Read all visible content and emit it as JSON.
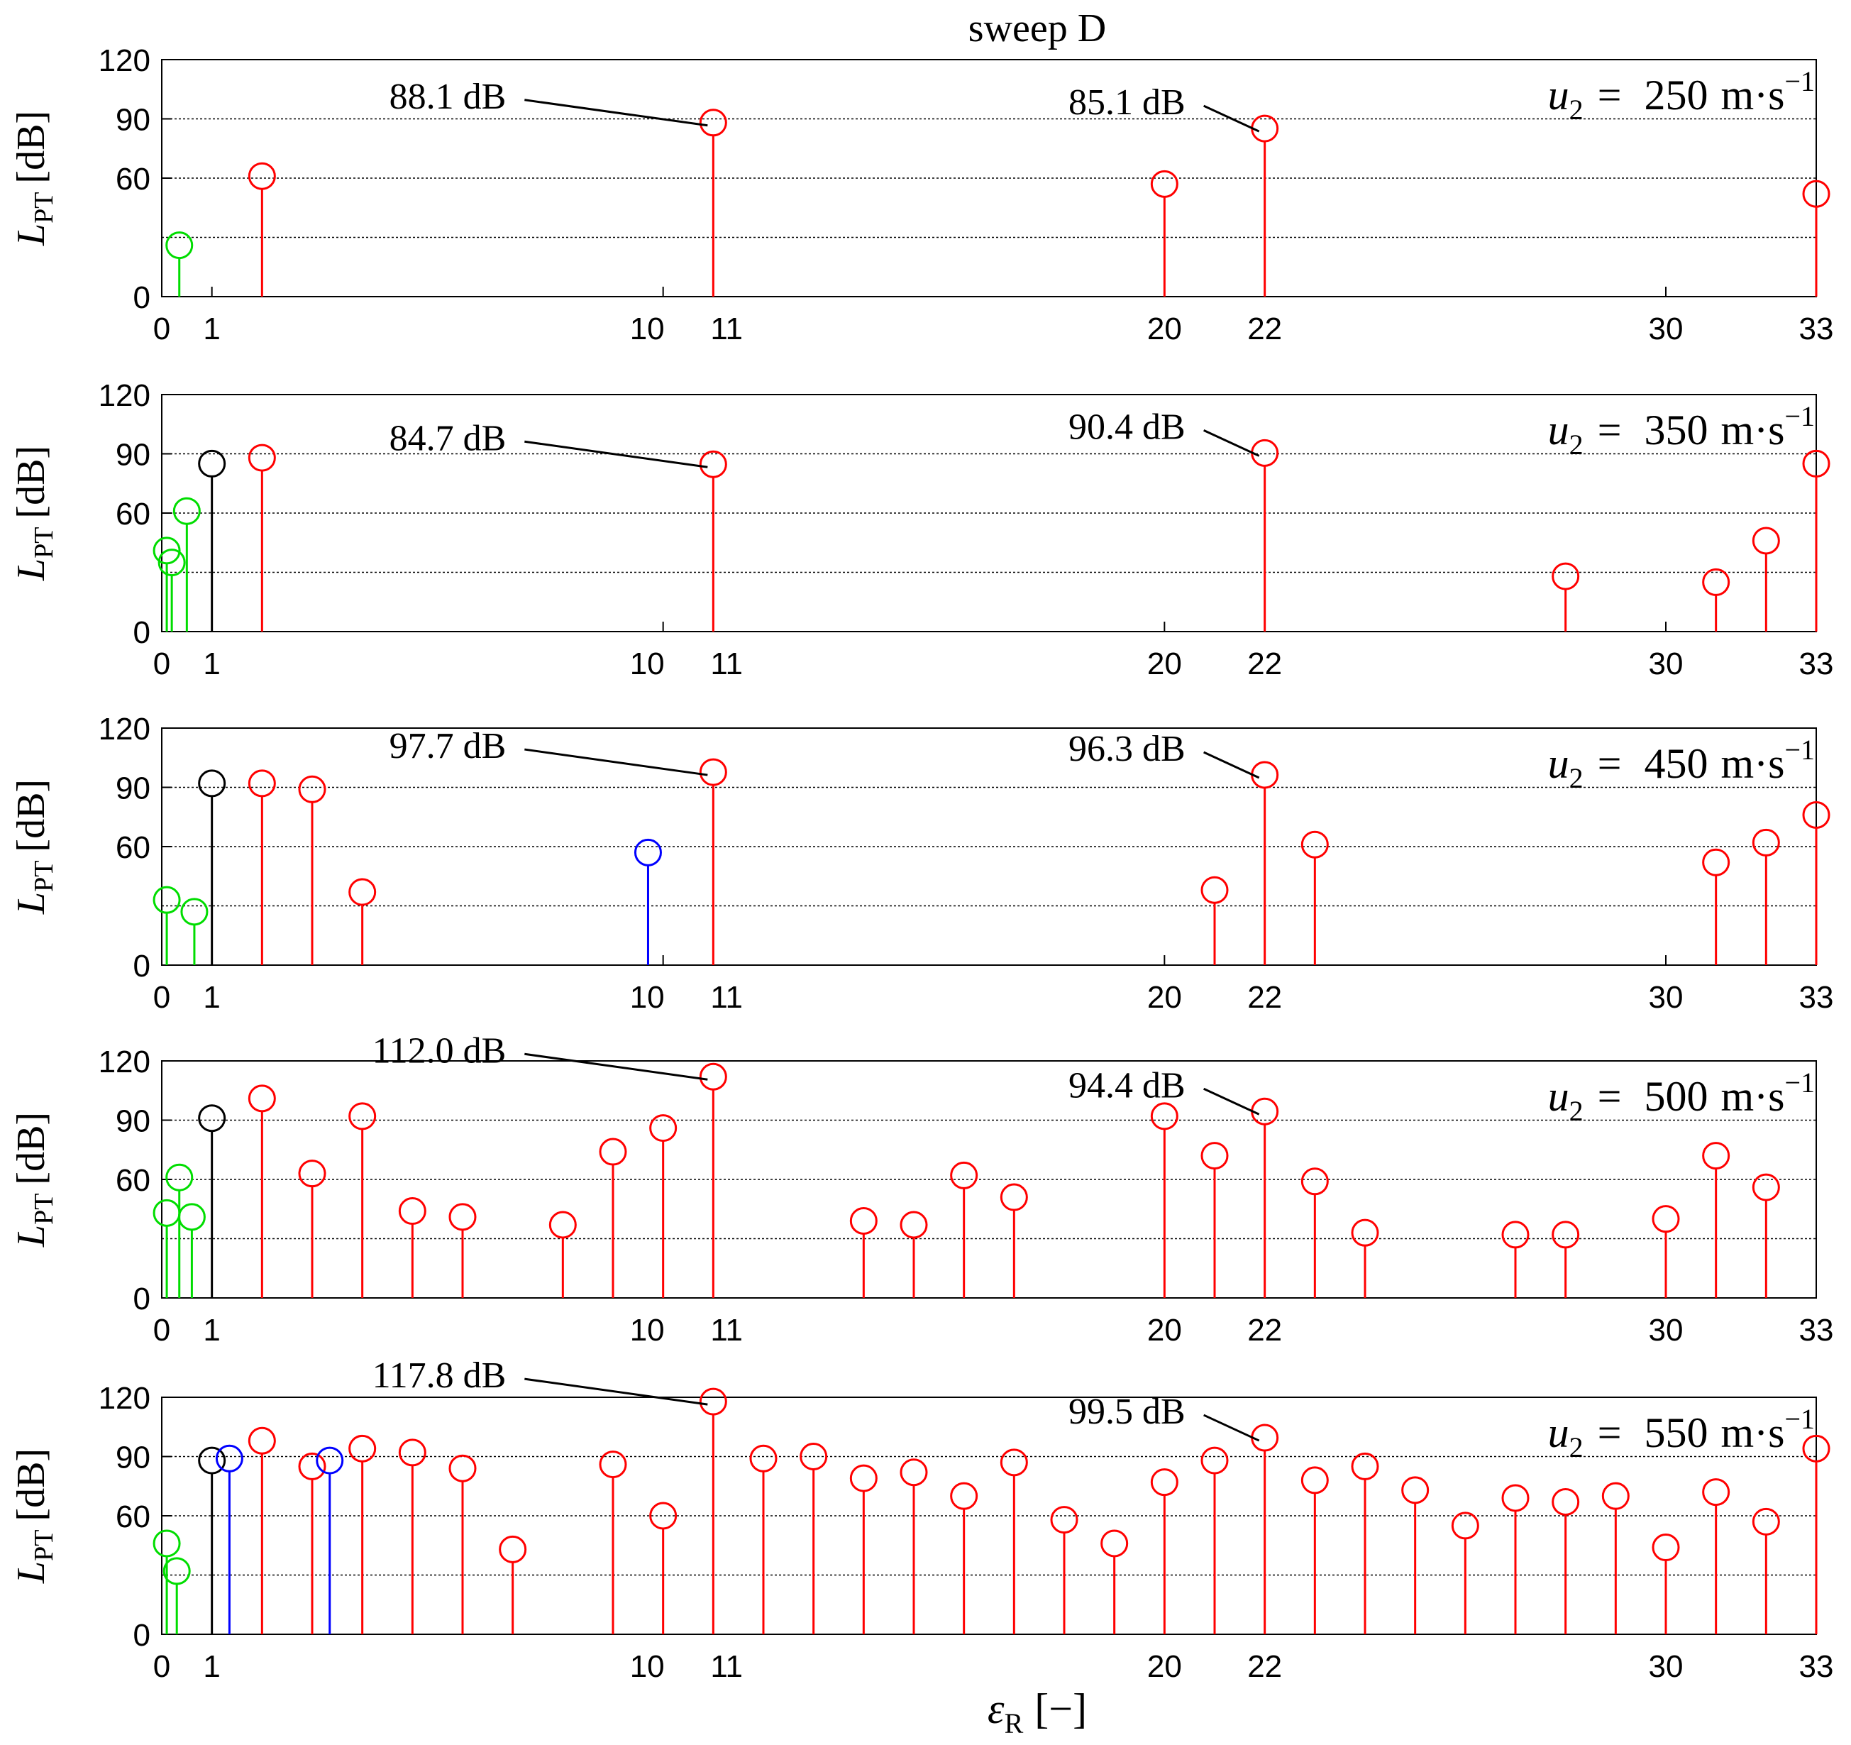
{
  "figure_title": "sweep D",
  "x_axis_label": "ε",
  "x_axis_label_sub": "R",
  "x_axis_label_unit": "[−]",
  "y_axis_label": "L",
  "y_axis_label_sub": "PT",
  "y_axis_label_unit": "[dB]",
  "speed_label_prefix": "u",
  "speed_label_sub": "2",
  "speed_label_unit": "m·s",
  "speed_label_exp": "−1",
  "colors": {
    "green": "#00dd00",
    "black": "#000000",
    "red": "#ff0000",
    "blue": "#0000ff",
    "grid": "#000000"
  },
  "chart_data": [
    {
      "type": "stem",
      "speed_value": "250",
      "xlim": [
        0,
        33
      ],
      "ylim": [
        0,
        120
      ],
      "x_ticks": [
        "0",
        "1",
        "10",
        "11",
        "20",
        "22",
        "30",
        "33"
      ],
      "y_ticks": [
        "0",
        "60",
        "90",
        "120"
      ],
      "gridlines_y": [
        30,
        60,
        90,
        120
      ],
      "stems": [
        {
          "x": 0.35,
          "y": 26,
          "color": "green"
        },
        {
          "x": 2,
          "y": 61,
          "color": "red"
        },
        {
          "x": 11,
          "y": 88.1,
          "color": "red"
        },
        {
          "x": 20,
          "y": 57,
          "color": "red"
        },
        {
          "x": 22,
          "y": 85.1,
          "color": "red"
        },
        {
          "x": 33,
          "y": 52,
          "color": "red"
        }
      ],
      "annotations": [
        {
          "x": 11,
          "y": 88.1,
          "text": "88.1 dB"
        },
        {
          "x": 22,
          "y": 85.1,
          "text": "85.1 dB"
        }
      ]
    },
    {
      "type": "stem",
      "speed_value": "350",
      "xlim": [
        0,
        33
      ],
      "ylim": [
        0,
        120
      ],
      "x_ticks": [
        "0",
        "1",
        "10",
        "11",
        "20",
        "22",
        "30",
        "33"
      ],
      "y_ticks": [
        "0",
        "60",
        "90",
        "120"
      ],
      "gridlines_y": [
        30,
        60,
        90,
        120
      ],
      "stems": [
        {
          "x": 0.1,
          "y": 41,
          "color": "green"
        },
        {
          "x": 0.2,
          "y": 35,
          "color": "green"
        },
        {
          "x": 0.5,
          "y": 61,
          "color": "green"
        },
        {
          "x": 1,
          "y": 85,
          "color": "black"
        },
        {
          "x": 2,
          "y": 88,
          "color": "red"
        },
        {
          "x": 11,
          "y": 84.7,
          "color": "red"
        },
        {
          "x": 22,
          "y": 90.4,
          "color": "red"
        },
        {
          "x": 28,
          "y": 28,
          "color": "red"
        },
        {
          "x": 31,
          "y": 25,
          "color": "red"
        },
        {
          "x": 32,
          "y": 46,
          "color": "red"
        },
        {
          "x": 33,
          "y": 85,
          "color": "red"
        }
      ],
      "annotations": [
        {
          "x": 11,
          "y": 84.7,
          "text": "84.7 dB"
        },
        {
          "x": 22,
          "y": 90.4,
          "text": "90.4 dB"
        }
      ]
    },
    {
      "type": "stem",
      "speed_value": "450",
      "xlim": [
        0,
        33
      ],
      "ylim": [
        0,
        120
      ],
      "x_ticks": [
        "0",
        "1",
        "10",
        "11",
        "20",
        "22",
        "30",
        "33"
      ],
      "y_ticks": [
        "0",
        "60",
        "90",
        "120"
      ],
      "gridlines_y": [
        30,
        60,
        90,
        120
      ],
      "stems": [
        {
          "x": 0.1,
          "y": 33,
          "color": "green"
        },
        {
          "x": 0.65,
          "y": 27,
          "color": "green"
        },
        {
          "x": 1,
          "y": 92,
          "color": "black"
        },
        {
          "x": 2,
          "y": 92,
          "color": "red"
        },
        {
          "x": 3,
          "y": 89,
          "color": "red"
        },
        {
          "x": 4,
          "y": 37,
          "color": "red"
        },
        {
          "x": 9.7,
          "y": 57,
          "color": "blue"
        },
        {
          "x": 11,
          "y": 97.7,
          "color": "red"
        },
        {
          "x": 21,
          "y": 38,
          "color": "red"
        },
        {
          "x": 22,
          "y": 96.3,
          "color": "red"
        },
        {
          "x": 23,
          "y": 61,
          "color": "red"
        },
        {
          "x": 31,
          "y": 52,
          "color": "red"
        },
        {
          "x": 32,
          "y": 62,
          "color": "red"
        },
        {
          "x": 33,
          "y": 76,
          "color": "red"
        }
      ],
      "annotations": [
        {
          "x": 11,
          "y": 97.7,
          "text": "97.7 dB"
        },
        {
          "x": 22,
          "y": 96.3,
          "text": "96.3 dB"
        }
      ]
    },
    {
      "type": "stem",
      "speed_value": "500",
      "xlim": [
        0,
        33
      ],
      "ylim": [
        0,
        120
      ],
      "x_ticks": [
        "0",
        "1",
        "10",
        "11",
        "20",
        "22",
        "30",
        "33"
      ],
      "y_ticks": [
        "0",
        "60",
        "90",
        "120"
      ],
      "gridlines_y": [
        30,
        60,
        90,
        120
      ],
      "stems": [
        {
          "x": 0.1,
          "y": 43,
          "color": "green"
        },
        {
          "x": 0.35,
          "y": 61,
          "color": "green"
        },
        {
          "x": 0.6,
          "y": 41,
          "color": "green"
        },
        {
          "x": 1,
          "y": 91,
          "color": "black"
        },
        {
          "x": 2,
          "y": 101,
          "color": "red"
        },
        {
          "x": 3,
          "y": 63,
          "color": "red"
        },
        {
          "x": 4,
          "y": 92,
          "color": "red"
        },
        {
          "x": 5,
          "y": 44,
          "color": "red"
        },
        {
          "x": 6,
          "y": 41,
          "color": "red"
        },
        {
          "x": 8,
          "y": 37,
          "color": "red"
        },
        {
          "x": 9,
          "y": 74,
          "color": "red"
        },
        {
          "x": 10,
          "y": 86,
          "color": "red"
        },
        {
          "x": 11,
          "y": 112.0,
          "color": "red"
        },
        {
          "x": 14,
          "y": 39,
          "color": "red"
        },
        {
          "x": 15,
          "y": 37,
          "color": "red"
        },
        {
          "x": 16,
          "y": 62,
          "color": "red"
        },
        {
          "x": 17,
          "y": 51,
          "color": "red"
        },
        {
          "x": 20,
          "y": 92,
          "color": "red"
        },
        {
          "x": 21,
          "y": 72,
          "color": "red"
        },
        {
          "x": 22,
          "y": 94.4,
          "color": "red"
        },
        {
          "x": 23,
          "y": 59,
          "color": "red"
        },
        {
          "x": 24,
          "y": 33,
          "color": "red"
        },
        {
          "x": 27,
          "y": 32,
          "color": "red"
        },
        {
          "x": 28,
          "y": 32,
          "color": "red"
        },
        {
          "x": 30,
          "y": 40,
          "color": "red"
        },
        {
          "x": 31,
          "y": 72,
          "color": "red"
        },
        {
          "x": 32,
          "y": 56,
          "color": "red"
        }
      ],
      "annotations": [
        {
          "x": 11,
          "y": 112.0,
          "text": "112.0 dB"
        },
        {
          "x": 22,
          "y": 94.4,
          "text": "94.4 dB"
        }
      ]
    },
    {
      "type": "stem",
      "speed_value": "550",
      "xlim": [
        0,
        33
      ],
      "ylim": [
        0,
        120
      ],
      "x_ticks": [
        "0",
        "1",
        "10",
        "11",
        "20",
        "22",
        "30",
        "33"
      ],
      "y_ticks": [
        "0",
        "60",
        "90",
        "120"
      ],
      "gridlines_y": [
        30,
        60,
        90,
        120
      ],
      "stems": [
        {
          "x": 0.1,
          "y": 46,
          "color": "green"
        },
        {
          "x": 0.3,
          "y": 32,
          "color": "green"
        },
        {
          "x": 1,
          "y": 88,
          "color": "black"
        },
        {
          "x": 1.35,
          "y": 89,
          "color": "blue"
        },
        {
          "x": 2,
          "y": 98,
          "color": "red"
        },
        {
          "x": 3,
          "y": 85,
          "color": "red"
        },
        {
          "x": 3.35,
          "y": 88,
          "color": "blue"
        },
        {
          "x": 4,
          "y": 94,
          "color": "red"
        },
        {
          "x": 5,
          "y": 92,
          "color": "red"
        },
        {
          "x": 6,
          "y": 84,
          "color": "red"
        },
        {
          "x": 7,
          "y": 43,
          "color": "red"
        },
        {
          "x": 9,
          "y": 86,
          "color": "red"
        },
        {
          "x": 10,
          "y": 60,
          "color": "red"
        },
        {
          "x": 11,
          "y": 117.8,
          "color": "red"
        },
        {
          "x": 12,
          "y": 89,
          "color": "red"
        },
        {
          "x": 13,
          "y": 90,
          "color": "red"
        },
        {
          "x": 14,
          "y": 79,
          "color": "red"
        },
        {
          "x": 15,
          "y": 82,
          "color": "red"
        },
        {
          "x": 16,
          "y": 70,
          "color": "red"
        },
        {
          "x": 17,
          "y": 87,
          "color": "red"
        },
        {
          "x": 18,
          "y": 58,
          "color": "red"
        },
        {
          "x": 19,
          "y": 46,
          "color": "red"
        },
        {
          "x": 20,
          "y": 77,
          "color": "red"
        },
        {
          "x": 21,
          "y": 88,
          "color": "red"
        },
        {
          "x": 22,
          "y": 99.5,
          "color": "red"
        },
        {
          "x": 23,
          "y": 78,
          "color": "red"
        },
        {
          "x": 24,
          "y": 85,
          "color": "red"
        },
        {
          "x": 25,
          "y": 73,
          "color": "red"
        },
        {
          "x": 26,
          "y": 55,
          "color": "red"
        },
        {
          "x": 27,
          "y": 69,
          "color": "red"
        },
        {
          "x": 28,
          "y": 67,
          "color": "red"
        },
        {
          "x": 29,
          "y": 70,
          "color": "red"
        },
        {
          "x": 30,
          "y": 44,
          "color": "red"
        },
        {
          "x": 31,
          "y": 72,
          "color": "red"
        },
        {
          "x": 32,
          "y": 57,
          "color": "red"
        },
        {
          "x": 33,
          "y": 94,
          "color": "red"
        }
      ],
      "annotations": [
        {
          "x": 11,
          "y": 117.8,
          "text": "117.8 dB"
        },
        {
          "x": 22,
          "y": 99.5,
          "text": "99.5 dB"
        }
      ]
    }
  ]
}
